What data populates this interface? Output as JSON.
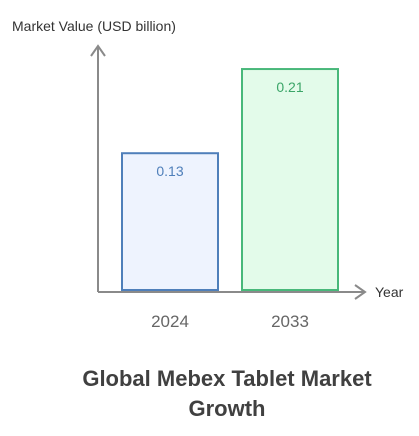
{
  "chart_data": {
    "type": "bar",
    "title": "Global Mebex Tablet Market Growth",
    "title_lines": [
      "Global Mebex Tablet Market",
      "Growth"
    ],
    "xlabel": "Year",
    "ylabel": "Market Value (USD billion)",
    "categories": [
      "2024",
      "2033"
    ],
    "values": [
      0.13,
      0.21
    ],
    "value_labels": [
      "0.13",
      "0.21"
    ],
    "ylim": [
      0,
      0.23
    ],
    "grid": false,
    "legend": "none"
  },
  "colors": {
    "axis": "#8a8a8a",
    "bars": [
      {
        "fill": "#eef3fe",
        "stroke": "#4f7fba",
        "label": "#4f7fba"
      },
      {
        "fill": "#e3fbea",
        "stroke": "#48b87a",
        "label": "#3ba568"
      }
    ]
  }
}
